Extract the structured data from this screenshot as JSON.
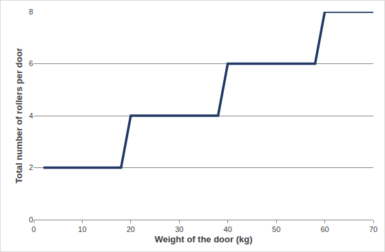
{
  "chart_data": {
    "type": "line",
    "x_label": "Weight of the door (kg)",
    "y_label": "Total number of rollers per door",
    "x": [
      2,
      18,
      20,
      38,
      40,
      58,
      60,
      70
    ],
    "values": [
      2,
      2,
      4,
      4,
      6,
      6,
      8,
      8
    ],
    "color": "#1f3864",
    "xlim": [
      0,
      70
    ],
    "ylim": [
      0,
      8
    ],
    "xticks": [
      0,
      10,
      20,
      30,
      40,
      50,
      60,
      70
    ],
    "yticks": [
      0,
      2,
      4,
      6,
      8
    ],
    "grid": true
  }
}
